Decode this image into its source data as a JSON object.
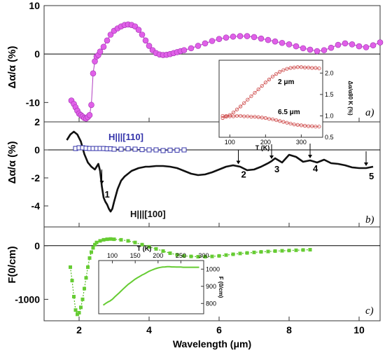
{
  "chart_data": [
    {
      "type": "line",
      "panel_label": "a)",
      "ylabel": "Δα/α (%)",
      "ylim": [
        -14,
        10
      ],
      "yticks": [
        "10",
        "0",
        "-10"
      ],
      "series": [
        {
          "color": "#e060e8",
          "x": [
            1.78,
            1.85,
            1.9,
            1.95,
            2.0,
            2.05,
            2.1,
            2.15,
            2.2,
            2.25,
            2.3,
            2.35,
            2.4,
            2.45,
            2.5,
            2.55,
            2.6,
            2.7,
            2.8,
            2.9,
            3.0,
            3.1,
            3.2,
            3.3,
            3.4,
            3.5,
            3.6,
            3.7,
            3.8,
            3.9,
            4.0,
            4.1,
            4.2,
            4.3,
            4.4,
            4.5,
            4.6,
            4.7,
            4.8,
            4.9,
            5.0,
            5.2,
            5.4,
            5.6,
            5.8,
            6.0,
            6.2,
            6.4,
            6.6,
            6.8,
            7.0,
            7.2,
            7.4,
            7.6,
            7.8,
            8.0,
            8.2,
            8.4,
            8.6,
            8.8,
            9.0,
            9.2,
            9.4,
            9.6,
            9.8,
            10.0,
            10.2,
            10.4,
            10.6
          ],
          "y": [
            -9.6,
            -10.3,
            -11.0,
            -11.7,
            -12.3,
            -12.6,
            -12.9,
            -13.2,
            -13.3,
            -13.0,
            -12.6,
            -10.5,
            -4.0,
            -1.5,
            -0.5,
            -0.2,
            0.5,
            1.5,
            2.8,
            4.0,
            4.8,
            5.3,
            5.7,
            6.0,
            6.1,
            6.0,
            5.7,
            5.0,
            4.0,
            2.8,
            1.7,
            0.8,
            0.2,
            -0.1,
            -0.2,
            -0.15,
            0.0,
            0.2,
            0.4,
            0.6,
            0.8,
            1.2,
            1.7,
            2.2,
            2.7,
            3.1,
            3.4,
            3.6,
            3.7,
            3.7,
            3.5,
            3.2,
            2.9,
            2.6,
            2.3,
            2.0,
            1.6,
            1.2,
            0.9,
            0.6,
            0.8,
            1.3,
            1.9,
            2.2,
            2.0,
            1.6,
            1.4,
            1.8,
            2.4
          ]
        }
      ],
      "inset": {
        "xlabel": "T (K)",
        "ylabel": "Δα/α80 K (%)",
        "xticks": [
          "100",
          "200",
          "300"
        ],
        "yticks": [
          "0.5",
          "1.0",
          "1.5",
          "2.0"
        ],
        "xlim": [
          70,
          360
        ],
        "ylim": [
          0.5,
          2.3
        ],
        "series": [
          {
            "name": "2 μm",
            "color": "#cc4444",
            "x": [
              80,
              90,
              100,
              110,
              120,
              130,
              140,
              150,
              160,
              170,
              180,
              190,
              200,
              210,
              220,
              230,
              240,
              250,
              260,
              270,
              280,
              290,
              300,
              310,
              320,
              330,
              340,
              350
            ],
            "y": [
              0.95,
              0.98,
              1.02,
              1.08,
              1.15,
              1.22,
              1.3,
              1.38,
              1.46,
              1.54,
              1.62,
              1.7,
              1.78,
              1.85,
              1.92,
              1.98,
              2.03,
              2.07,
              2.1,
              2.12,
              2.13,
              2.14,
              2.14,
              2.13,
              2.13,
              2.12,
              2.12,
              2.11
            ]
          },
          {
            "name": "6.5 μm",
            "color": "#cc4444",
            "x": [
              80,
              90,
              100,
              110,
              120,
              130,
              140,
              150,
              160,
              170,
              180,
              190,
              200,
              210,
              220,
              230,
              240,
              250,
              260,
              270,
              280,
              290,
              300,
              310,
              320,
              330,
              340,
              350
            ],
            "y": [
              1.0,
              1.0,
              0.99,
              0.99,
              1.0,
              1.0,
              0.99,
              0.99,
              0.98,
              0.98,
              0.97,
              0.96,
              0.95,
              0.93,
              0.92,
              0.9,
              0.88,
              0.86,
              0.84,
              0.82,
              0.8,
              0.79,
              0.78,
              0.77,
              0.76,
              0.76,
              0.75,
              0.75
            ]
          }
        ]
      }
    },
    {
      "type": "line",
      "panel_label": "b)",
      "ylabel": "Δα/α (%)",
      "ylim": [
        -5.5,
        2
      ],
      "yticks": [
        "2",
        "0",
        "-2",
        "-4"
      ],
      "series": [
        {
          "name": "H||[100]",
          "color": "#111111",
          "x": [
            1.65,
            1.75,
            1.85,
            1.95,
            2.05,
            2.15,
            2.25,
            2.35,
            2.45,
            2.5,
            2.55,
            2.6,
            2.65,
            2.7,
            2.75,
            2.8,
            2.85,
            2.9,
            2.95,
            3.0,
            3.1,
            3.2,
            3.3,
            3.4,
            3.5,
            3.6,
            3.7,
            3.8,
            3.9,
            4.0,
            4.2,
            4.4,
            4.6,
            4.8,
            5.0,
            5.2,
            5.4,
            5.6,
            5.8,
            6.0,
            6.2,
            6.4,
            6.6,
            6.8,
            7.0,
            7.2,
            7.4,
            7.5,
            7.6,
            7.8,
            8.0,
            8.2,
            8.4,
            8.6,
            8.8,
            9.0,
            9.2,
            9.4,
            9.6,
            9.8,
            10.0,
            10.2,
            10.4
          ],
          "y": [
            0.7,
            1.1,
            1.3,
            1.1,
            0.6,
            -0.3,
            -0.9,
            -1.2,
            -1.4,
            -1.2,
            -1.0,
            -1.5,
            -2.6,
            -3.4,
            -3.7,
            -3.9,
            -4.2,
            -4.4,
            -4.2,
            -3.7,
            -2.8,
            -2.2,
            -1.9,
            -1.7,
            -1.5,
            -1.4,
            -1.3,
            -1.25,
            -1.2,
            -1.2,
            -1.15,
            -1.15,
            -1.2,
            -1.3,
            -1.5,
            -1.7,
            -1.8,
            -1.75,
            -1.6,
            -1.4,
            -1.2,
            -1.1,
            -1.2,
            -1.45,
            -1.4,
            -1.2,
            -0.95,
            -0.8,
            -0.6,
            -0.9,
            -0.35,
            -0.5,
            -0.85,
            -0.75,
            -0.9,
            -0.7,
            -0.95,
            -1.0,
            -1.1,
            -1.25,
            -1.3,
            -1.3,
            -1.2
          ]
        },
        {
          "name": "H|||[110]",
          "color": "#3333aa",
          "x": [
            1.9,
            2.0,
            2.1,
            2.2,
            2.3,
            2.4,
            2.5,
            2.6,
            2.7,
            2.8,
            2.9,
            3.0,
            3.2,
            3.4,
            3.6,
            3.8,
            4.0,
            4.2,
            4.4,
            4.6,
            4.8,
            5.0
          ],
          "y": [
            0.1,
            0.15,
            0.15,
            0.12,
            0.1,
            0.1,
            0.1,
            0.1,
            0.1,
            0.08,
            0.08,
            0.05,
            0.05,
            0.08,
            0.05,
            0.02,
            0.0,
            0.0,
            -0.05,
            -0.02,
            -0.02,
            0.0
          ]
        }
      ],
      "markers": [
        {
          "label": "1",
          "x": 2.65
        },
        {
          "label": "2",
          "x": 6.55
        },
        {
          "label": "3",
          "x": 7.5
        },
        {
          "label": "4",
          "x": 8.6
        },
        {
          "label": "5",
          "x": 10.2
        }
      ],
      "annotations": [
        "H|||[110]",
        "H|||[100]"
      ]
    },
    {
      "type": "line",
      "panel_label": "c)",
      "ylabel": "F(0/cm)",
      "ylim": [
        -1400,
        350
      ],
      "yticks": [
        "0",
        "-1000"
      ],
      "xlabel": "Wavelength (μm)",
      "xlim": [
        1,
        10.6
      ],
      "xticks": [
        "2",
        "4",
        "6",
        "8",
        "10"
      ],
      "series": [
        {
          "color": "#66cc33",
          "x": [
            1.75,
            1.8,
            1.85,
            1.9,
            1.95,
            2.0,
            2.05,
            2.1,
            2.15,
            2.2,
            2.25,
            2.3,
            2.35,
            2.4,
            2.45,
            2.5,
            2.6,
            2.7,
            2.8,
            2.9,
            3.0,
            3.2,
            3.4,
            3.6,
            3.8,
            4.0,
            4.2,
            4.4,
            4.6,
            4.8,
            5.0,
            5.2,
            5.4,
            5.6,
            5.8,
            6.0,
            6.2,
            6.4,
            6.6,
            6.8,
            7.0,
            7.2,
            7.4,
            7.6,
            7.8,
            8.0,
            8.2,
            8.4,
            8.6
          ],
          "y": [
            -400,
            -650,
            -950,
            -1200,
            -1280,
            -1250,
            -1150,
            -1000,
            -800,
            -600,
            -400,
            -230,
            -120,
            -40,
            20,
            60,
            90,
            110,
            120,
            125,
            120,
            110,
            90,
            60,
            20,
            -20,
            -60,
            -100,
            -140,
            -170,
            -190,
            -200,
            -205,
            -205,
            -200,
            -190,
            -175,
            -160,
            -145,
            -135,
            -125,
            -115,
            -108,
            -100,
            -95,
            -90,
            -85,
            -80,
            -75
          ]
        }
      ],
      "inset": {
        "xlabel": "T (K)",
        "ylabel": "F (0/cm)",
        "xticks": [
          "100",
          "150",
          "200",
          "250",
          "300"
        ],
        "yticks": [
          "800",
          "900",
          "1000"
        ],
        "xlim": [
          70,
          300
        ],
        "ylim": [
          740,
          1050
        ],
        "series": [
          {
            "color": "#66cc33",
            "x": [
              80,
              85,
              90,
              95,
              100,
              105,
              110,
              115,
              120,
              125,
              130,
              135,
              140,
              145,
              150,
              155,
              160,
              165,
              170,
              175,
              180,
              185,
              190,
              195,
              200,
              205,
              210,
              215,
              220,
              225,
              230,
              235,
              240,
              245,
              250,
              255,
              260,
              265,
              270,
              275,
              280,
              285,
              290
            ],
            "y": [
              790,
              800,
              808,
              815,
              825,
              838,
              850,
              862,
              875,
              888,
              900,
              912,
              922,
              932,
              942,
              950,
              958,
              966,
              972,
              980,
              987,
              993,
              998,
              1003,
              1007,
              1010,
              1012,
              1013,
              1014,
              1014,
              1013,
              1013,
              1012,
              1012,
              1012,
              1011,
              1011,
              1011,
              1011,
              1011,
              1011,
              1011,
              1011
            ]
          }
        ]
      }
    }
  ]
}
